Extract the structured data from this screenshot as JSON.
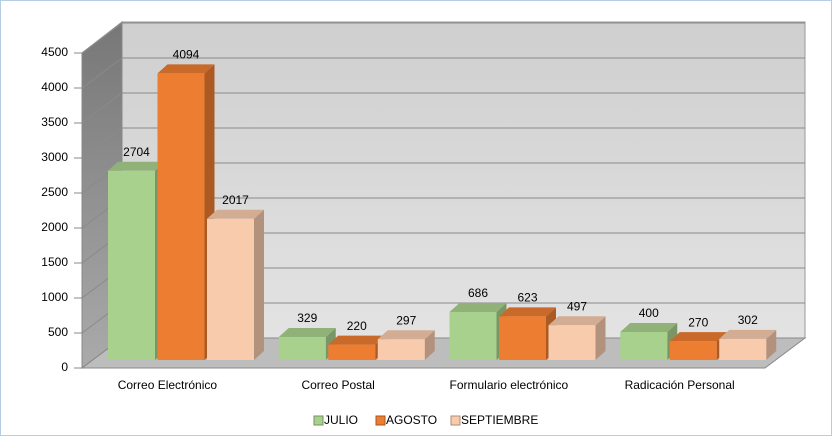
{
  "chart_data": {
    "type": "bar",
    "categories": [
      "Correo Electrónico",
      "Correo Postal",
      "Formulario electrónico",
      "Radicación Personal"
    ],
    "series": [
      {
        "name": "JULIO",
        "color": "#a9d18e",
        "values": [
          2704,
          329,
          686,
          400
        ]
      },
      {
        "name": "AGOSTO",
        "color": "#ed7d31",
        "values": [
          4094,
          220,
          623,
          270
        ]
      },
      {
        "name": "SEPTIEMBRE",
        "color": "#f8cbad",
        "values": [
          2017,
          297,
          497,
          302
        ]
      }
    ],
    "ylim": [
      0,
      4500
    ],
    "yticks": [
      0,
      500,
      1000,
      1500,
      2000,
      2500,
      3000,
      3500,
      4000,
      4500
    ],
    "grid": true,
    "legend": "bottom"
  }
}
